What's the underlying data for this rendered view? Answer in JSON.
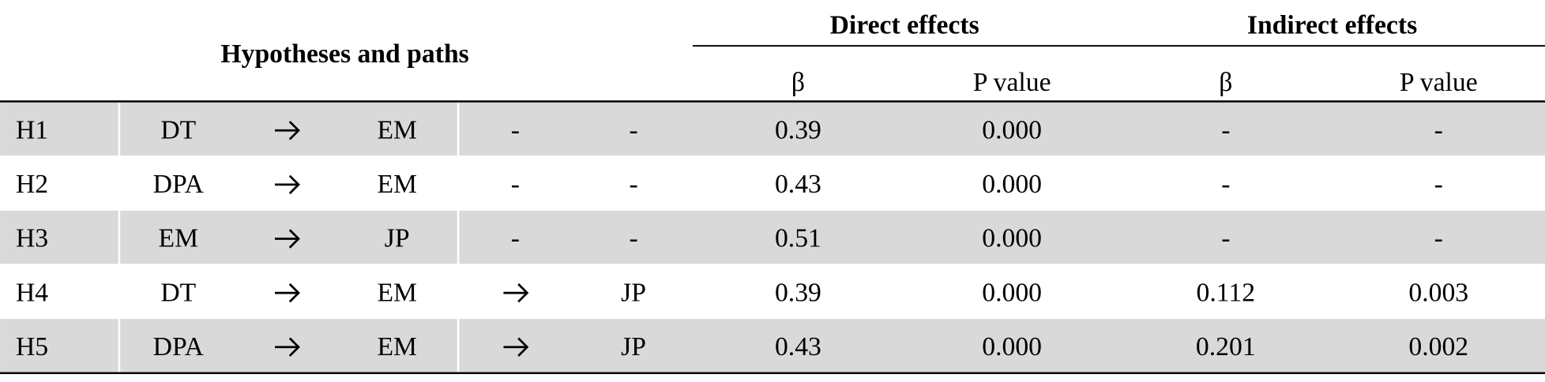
{
  "header": {
    "group": "Hypotheses and paths",
    "direct": "Direct effects",
    "indirect": "Indirect effects",
    "columns": [
      "β",
      "P value",
      "β",
      "P value"
    ]
  },
  "table": {
    "rows": [
      {
        "id": "H1",
        "path": [
          "DT",
          "EM"
        ],
        "blank": [
          "-",
          "-"
        ],
        "direct": [
          "0.39",
          "0.000"
        ],
        "indirect": [
          "-",
          "-"
        ]
      },
      {
        "id": "H2",
        "path": [
          "DPA",
          "EM"
        ],
        "blank": [
          "-",
          "-"
        ],
        "direct": [
          "0.43",
          "0.000"
        ],
        "indirect": [
          "-",
          "-"
        ]
      },
      {
        "id": "H3",
        "path": [
          "EM",
          "JP"
        ],
        "blank": [
          "-",
          "-"
        ],
        "direct": [
          "0.51",
          "0.000"
        ],
        "indirect": [
          "-",
          "-"
        ]
      },
      {
        "id": "H4",
        "path": [
          "DT",
          "EM",
          "JP"
        ],
        "direct": [
          "0.39",
          "0.000"
        ],
        "indirect": [
          "0.112",
          "0.003"
        ]
      },
      {
        "id": "H5",
        "path": [
          "DPA",
          "EM",
          "JP"
        ],
        "direct": [
          "0.43",
          "0.000"
        ],
        "indirect": [
          "0.201",
          "0.002"
        ]
      }
    ]
  }
}
